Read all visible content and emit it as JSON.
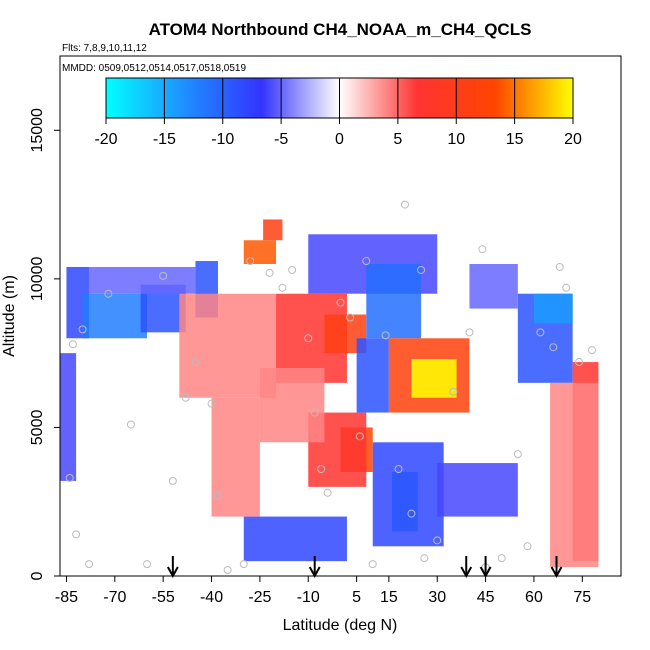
{
  "chart_data": {
    "type": "heatmap",
    "title": "ATOM4 Northbound CH4_NOAA_m_CH4_QCLS",
    "subtitle_flights": "Flts: 7,8,9,10,11,12",
    "subtitle_dates": "MMDD: 0509,0512,0514,0517,0518,0519",
    "xlabel": "Latitude (deg N)",
    "ylabel": "Altitude (m)",
    "xlim": [
      -87,
      87
    ],
    "ylim": [
      0,
      17500
    ],
    "x_ticks": [
      -85,
      -70,
      -55,
      -40,
      -25,
      -10,
      5,
      15,
      30,
      45,
      60,
      75
    ],
    "x_tick_labels": [
      "-85",
      "-70",
      "-55",
      "-40",
      "-25",
      "-10",
      "5",
      "15",
      "30",
      "45",
      "60",
      "75"
    ],
    "y_ticks": [
      0,
      5000,
      10000,
      15000
    ],
    "y_tick_labels": [
      "0",
      "5000",
      "10000",
      "15000"
    ],
    "colorbar": {
      "range": [
        -20,
        20
      ],
      "ticks": [
        -20,
        -15,
        -10,
        -5,
        0,
        5,
        10,
        15,
        20
      ],
      "tick_labels": [
        "-20",
        "-15",
        "-10",
        "-5",
        "0",
        "5",
        "10",
        "15",
        "20"
      ],
      "colors": [
        "#00ffff",
        "#1e90ff",
        "#3333ff",
        "#ffffff",
        "#ff3333",
        "#ff4500",
        "#ffff00"
      ]
    },
    "arrows_latitude": [
      -52,
      -8,
      39,
      45,
      67
    ],
    "cells": [
      {
        "lat": [
          -85,
          -78
        ],
        "alt": [
          8000,
          10400
        ],
        "v": -8
      },
      {
        "lat": [
          -80,
          -60
        ],
        "alt": [
          8000,
          9500
        ],
        "v": -12
      },
      {
        "lat": [
          -62,
          -48
        ],
        "alt": [
          8200,
          9800
        ],
        "v": -9
      },
      {
        "lat": [
          -78,
          -45
        ],
        "alt": [
          9500,
          10400
        ],
        "v": -5
      },
      {
        "lat": [
          -45,
          -38
        ],
        "alt": [
          8700,
          10600
        ],
        "v": -9
      },
      {
        "lat": [
          -87,
          -82
        ],
        "alt": [
          3200,
          7500
        ],
        "v": -6
      },
      {
        "lat": [
          -30,
          -20
        ],
        "alt": [
          10500,
          11300
        ],
        "v": 14
      },
      {
        "lat": [
          -24,
          -18
        ],
        "alt": [
          11300,
          12000
        ],
        "v": 11
      },
      {
        "lat": [
          -50,
          -20
        ],
        "alt": [
          6000,
          9500
        ],
        "v": 4
      },
      {
        "lat": [
          -20,
          2
        ],
        "alt": [
          6500,
          9500
        ],
        "v": 7
      },
      {
        "lat": [
          -5,
          8
        ],
        "alt": [
          7500,
          8800
        ],
        "v": 11
      },
      {
        "lat": [
          0,
          10
        ],
        "alt": [
          3500,
          5000
        ],
        "v": 13
      },
      {
        "lat": [
          -10,
          8
        ],
        "alt": [
          3000,
          5500
        ],
        "v": 7
      },
      {
        "lat": [
          -25,
          -5
        ],
        "alt": [
          4500,
          7000
        ],
        "v": 4
      },
      {
        "lat": [
          -10,
          30
        ],
        "alt": [
          9500,
          11500
        ],
        "v": -6
      },
      {
        "lat": [
          8,
          25
        ],
        "alt": [
          8000,
          10500
        ],
        "v": -11
      },
      {
        "lat": [
          5,
          15
        ],
        "alt": [
          5500,
          8000
        ],
        "v": -9
      },
      {
        "lat": [
          15,
          40
        ],
        "alt": [
          5500,
          8000
        ],
        "v": 12
      },
      {
        "lat": [
          22,
          36
        ],
        "alt": [
          6000,
          7300
        ],
        "v": 20
      },
      {
        "lat": [
          16,
          24
        ],
        "alt": [
          1500,
          3500
        ],
        "v": -15
      },
      {
        "lat": [
          10,
          32
        ],
        "alt": [
          1000,
          4500
        ],
        "v": -8
      },
      {
        "lat": [
          30,
          55
        ],
        "alt": [
          2000,
          3800
        ],
        "v": -6
      },
      {
        "lat": [
          -30,
          2
        ],
        "alt": [
          500,
          2000
        ],
        "v": -8
      },
      {
        "lat": [
          55,
          72
        ],
        "alt": [
          6500,
          9500
        ],
        "v": -9
      },
      {
        "lat": [
          60,
          72
        ],
        "alt": [
          8500,
          9500
        ],
        "v": -14
      },
      {
        "lat": [
          72,
          80
        ],
        "alt": [
          500,
          7200
        ],
        "v": 7
      },
      {
        "lat": [
          65,
          80
        ],
        "alt": [
          300,
          6500
        ],
        "v": 4
      },
      {
        "lat": [
          40,
          55
        ],
        "alt": [
          9000,
          10500
        ],
        "v": -5
      },
      {
        "lat": [
          -40,
          -25
        ],
        "alt": [
          2000,
          6000
        ],
        "v": 4
      }
    ],
    "points": [
      [
        -84,
        3300
      ],
      [
        -82,
        1400
      ],
      [
        -83,
        7800
      ],
      [
        -80,
        8300
      ],
      [
        -60,
        400
      ],
      [
        -52,
        3200
      ],
      [
        -48,
        6000
      ],
      [
        -45,
        7200
      ],
      [
        -40,
        5800
      ],
      [
        -38,
        2700
      ],
      [
        -35,
        200
      ],
      [
        -30,
        400
      ],
      [
        -28,
        10600
      ],
      [
        -22,
        10200
      ],
      [
        -18,
        9700
      ],
      [
        -10,
        8000
      ],
      [
        -8,
        5500
      ],
      [
        -6,
        3600
      ],
      [
        -4,
        2800
      ],
      [
        0,
        9200
      ],
      [
        3,
        8700
      ],
      [
        6,
        4700
      ],
      [
        10,
        400
      ],
      [
        14,
        8100
      ],
      [
        18,
        3600
      ],
      [
        22,
        2100
      ],
      [
        26,
        600
      ],
      [
        30,
        1200
      ],
      [
        35,
        6200
      ],
      [
        40,
        8200
      ],
      [
        45,
        300
      ],
      [
        50,
        600
      ],
      [
        55,
        4100
      ],
      [
        58,
        1000
      ],
      [
        62,
        8200
      ],
      [
        66,
        7700
      ],
      [
        70,
        9700
      ],
      [
        74,
        7200
      ],
      [
        78,
        7600
      ],
      [
        -72,
        9500
      ],
      [
        -55,
        10100
      ],
      [
        -15,
        10300
      ],
      [
        8,
        10600
      ],
      [
        25,
        10300
      ],
      [
        44,
        11000
      ],
      [
        -65,
        5100
      ],
      [
        20,
        12500
      ],
      [
        -78,
        400
      ],
      [
        68,
        10400
      ]
    ]
  }
}
